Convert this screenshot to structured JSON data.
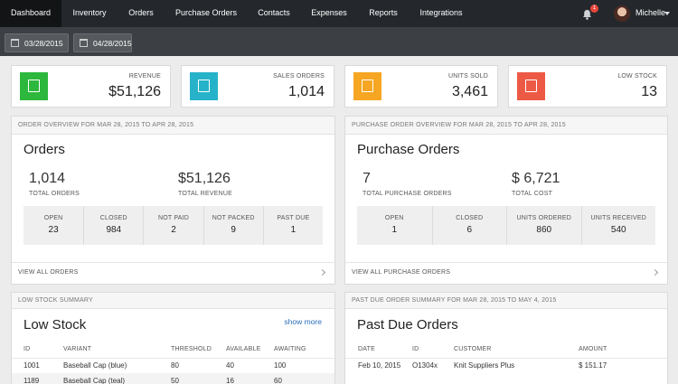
{
  "nav": {
    "items": [
      "Dashboard",
      "Inventory",
      "Orders",
      "Purchase Orders",
      "Contacts",
      "Expenses",
      "Reports",
      "Integrations"
    ],
    "notification_count": 1,
    "user": "Michelle"
  },
  "date_range": {
    "start": "03/28/2015",
    "end": "04/28/2015"
  },
  "stats": [
    {
      "label": "REVENUE",
      "value": "$51,126",
      "color": "#2db83d"
    },
    {
      "label": "SALES ORDERS",
      "value": "1,014",
      "color": "#26b3c9"
    },
    {
      "label": "UNITS SOLD",
      "value": "3,461",
      "color": "#f6a623"
    },
    {
      "label": "LOW STOCK",
      "value": 13,
      "color": "#ec5a45"
    }
  ],
  "order_overview": {
    "header": "ORDER OVERVIEW FOR MAR 28, 2015 TO APR 28, 2015",
    "title": "Orders",
    "totals": [
      {
        "value": "1,014",
        "label": "TOTAL ORDERS"
      },
      {
        "value": "$51,126",
        "label": "TOTAL REVENUE"
      }
    ],
    "breakdown": [
      {
        "label": "OPEN",
        "value": 23
      },
      {
        "label": "CLOSED",
        "value": 984
      },
      {
        "label": "NOT PAID",
        "value": 2
      },
      {
        "label": "NOT PACKED",
        "value": 9
      },
      {
        "label": "PAST DUE",
        "value": 1
      }
    ],
    "footer": "VIEW ALL ORDERS"
  },
  "purchase_overview": {
    "header": "PURCHASE ORDER OVERVIEW FOR MAR 28, 2015 TO APR 28, 2015",
    "title": "Purchase Orders",
    "totals": [
      {
        "value": 7,
        "label": "TOTAL PURCHASE ORDERS"
      },
      {
        "value": "$ 6,721",
        "label": "TOTAL COST"
      }
    ],
    "breakdown": [
      {
        "label": "OPEN",
        "value": 1
      },
      {
        "label": "CLOSED",
        "value": 6
      },
      {
        "label": "UNITS ORDERED",
        "value": 860
      },
      {
        "label": "UNITS RECEIVED",
        "value": 540
      }
    ],
    "footer": "VIEW ALL PURCHASE ORDERS"
  },
  "low_stock": {
    "header": "LOW STOCK SUMMARY",
    "title": "Low Stock",
    "link": "show more",
    "columns": [
      "ID",
      "VARIANT",
      "THRESHOLD",
      "AVAILABLE",
      "AWAITING"
    ],
    "rows": [
      [
        "1001",
        "Baseball Cap (blue)",
        80,
        40,
        100
      ],
      [
        "1189",
        "Baseball Cap (teal)",
        50,
        16,
        60
      ]
    ]
  },
  "past_due": {
    "header": "PAST DUE ORDER SUMMARY FOR MAR 28, 2015 TO MAY 4, 2015",
    "title": "Past Due Orders",
    "columns": [
      "DATE",
      "ID",
      "CUSTOMER",
      "AMOUNT"
    ],
    "rows": [
      [
        "Feb 10, 2015",
        "O1304x",
        "Knit Suppliers Plus",
        "$ 151.17"
      ]
    ]
  }
}
